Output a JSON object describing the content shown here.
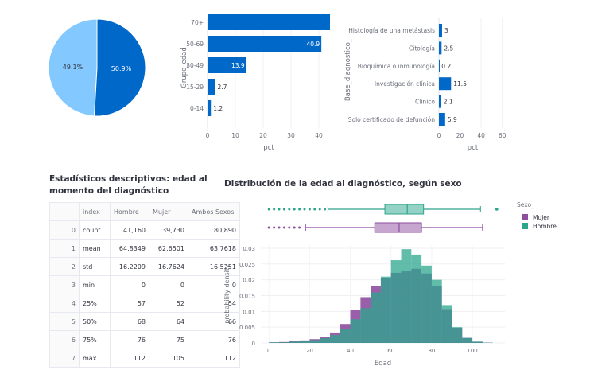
{
  "pie": {
    "chart_data": {
      "type": "pie",
      "slices": [
        {
          "label": "49.1%",
          "value": 49.1,
          "color": "#83c9ff"
        },
        {
          "label": "50.9%",
          "value": 50.9,
          "color": "#0068c9"
        }
      ]
    }
  },
  "age_group_chart": {
    "chart_data": {
      "type": "bar",
      "orientation": "horizontal",
      "categories": [
        "70+",
        "50-69",
        "30-49",
        "15-29",
        "0-14"
      ],
      "values": [
        null,
        40.9,
        13.9,
        2.7,
        1.2
      ],
      "labels": [
        "",
        "40.9",
        "13.9",
        "2.7",
        "1.2"
      ],
      "xlabel": "pct",
      "ylabel": "Grupo_edad",
      "xticks": [
        "0",
        "10",
        "20",
        "30",
        "40"
      ],
      "xlim": [
        0,
        44
      ],
      "color": "#0068c9"
    }
  },
  "diagnosis_basis_chart": {
    "chart_data": {
      "type": "bar",
      "orientation": "horizontal",
      "categories": [
        "Histología de una metástasis",
        "Citología",
        "Bioquímica o inmunología",
        "Investigación clínica",
        "Clínico",
        "Solo certificado de defunción"
      ],
      "values": [
        3,
        2.5,
        0.2,
        11.5,
        2.1,
        5.9
      ],
      "labels": [
        "3",
        "2.5",
        "0.2",
        "11.5",
        "2.1",
        "5.9"
      ],
      "xlabel": "pct",
      "ylabel": "Base_diagnostico_",
      "xticks": [
        "0",
        "20",
        "40",
        "60"
      ],
      "xlim": [
        0,
        64
      ],
      "color": "#0068c9"
    }
  },
  "stats_table": {
    "title": "Estadísticos descriptivos: edad al momento del diagnóstico",
    "headers": [
      "",
      "index",
      "Hombre",
      "Mujer",
      "Ambos Sexos"
    ],
    "rows": [
      [
        "0",
        "count",
        "41,160",
        "39,730",
        "80,890"
      ],
      [
        "1",
        "mean",
        "64.8349",
        "62.6501",
        "63.7618"
      ],
      [
        "2",
        "std",
        "16.2209",
        "16.7624",
        "16.5251"
      ],
      [
        "3",
        "min",
        "0",
        "0",
        "0"
      ],
      [
        "4",
        "25%",
        "57",
        "52",
        "54"
      ],
      [
        "5",
        "50%",
        "68",
        "64",
        "66"
      ],
      [
        "6",
        "75%",
        "76",
        "75",
        "76"
      ],
      [
        "7",
        "max",
        "112",
        "105",
        "112"
      ]
    ]
  },
  "distribution_chart": {
    "title": "Distribución de la edad al diagnóstico, según sexo",
    "chart_data": {
      "type": "histogram",
      "xlabel": "Edad",
      "ylabel": "probability density",
      "xticks": [
        "0",
        "20",
        "40",
        "60",
        "80",
        "100"
      ],
      "yticks": [
        "0",
        "0.005",
        "0.01",
        "0.015",
        "0.02",
        "0.025",
        "0.03"
      ],
      "xlim": [
        -4,
        116
      ],
      "ylim": [
        0,
        0.031
      ],
      "bin_width": 5,
      "bin_starts": [
        0,
        5,
        10,
        15,
        20,
        25,
        30,
        35,
        40,
        45,
        50,
        55,
        60,
        65,
        70,
        75,
        80,
        85,
        90,
        95,
        100,
        105,
        110
      ],
      "legend_title": "Sexo_",
      "legend_placement": "right",
      "series": [
        {
          "name": "Mujer",
          "color": "#8e4ea0",
          "values": [
            0.0002,
            0.0003,
            0.0005,
            0.0008,
            0.0012,
            0.002,
            0.0033,
            0.006,
            0.0105,
            0.0145,
            0.018,
            0.0205,
            0.0222,
            0.0228,
            0.0235,
            0.022,
            0.018,
            0.0107,
            0.0048,
            0.0016,
            0.0004,
            0.0001,
            0.0
          ]
        },
        {
          "name": "Hombre",
          "color": "#2ca58d",
          "values": [
            0.0002,
            0.0002,
            0.0004,
            0.0006,
            0.0009,
            0.0015,
            0.0025,
            0.0045,
            0.0075,
            0.011,
            0.016,
            0.021,
            0.0262,
            0.0297,
            0.028,
            0.0245,
            0.02,
            0.012,
            0.005,
            0.0016,
            0.0004,
            0.0001,
            0.0
          ]
        }
      ],
      "boxplots": [
        {
          "name": "Hombre",
          "color": "#2ca58d",
          "q1": 57,
          "median": 68,
          "q3": 76,
          "whisker_low": 29,
          "whisker_high": 104,
          "outlier": 112
        },
        {
          "name": "Mujer",
          "color": "#8e4ea0",
          "q1": 52,
          "median": 64,
          "q3": 75,
          "whisker_low": 18,
          "whisker_high": 105
        }
      ]
    }
  }
}
